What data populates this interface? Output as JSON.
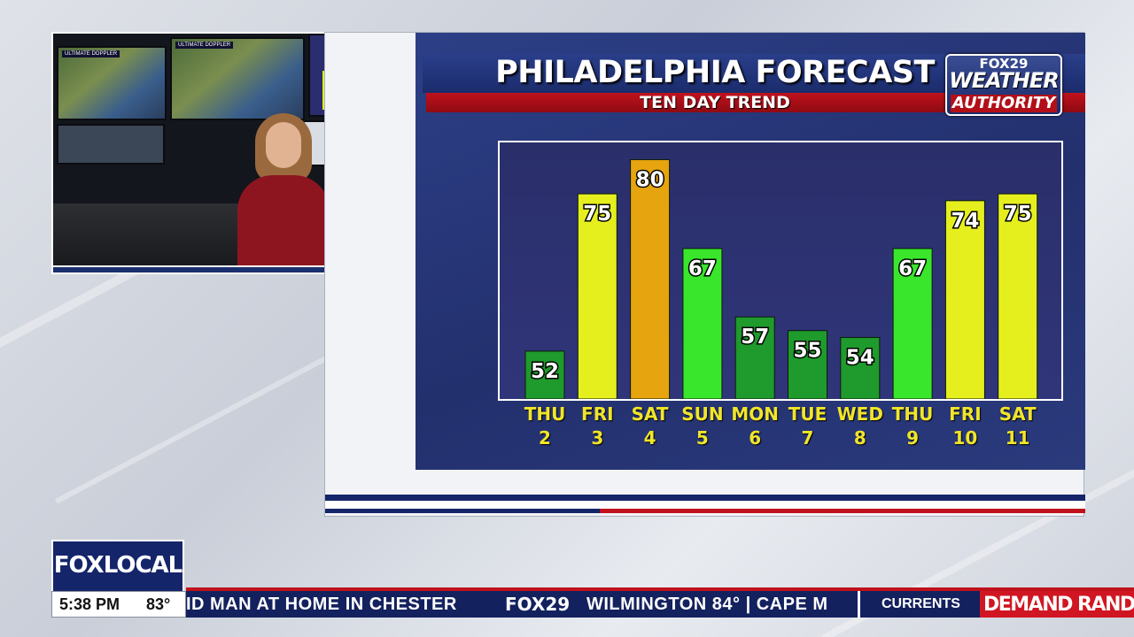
{
  "forecast": {
    "title": "PHILADELPHIA FORECAST",
    "subtitle": "TEN DAY TREND"
  },
  "logo": {
    "line1": "FOX29",
    "line2": "WEATHER",
    "line3": "AUTHORITY"
  },
  "chart_data": {
    "type": "bar",
    "title": "PHILADELPHIA FORECAST",
    "subtitle": "TEN DAY TREND",
    "days": [
      "THU",
      "FRI",
      "SAT",
      "SUN",
      "MON",
      "TUE",
      "WED",
      "THU",
      "FRI",
      "SAT"
    ],
    "dates": [
      "2",
      "3",
      "4",
      "5",
      "6",
      "7",
      "8",
      "9",
      "10",
      "11"
    ],
    "categories": [
      "THU 2",
      "FRI 3",
      "SAT 4",
      "SUN 5",
      "MON 6",
      "TUE 7",
      "WED 8",
      "THU 9",
      "FRI 10",
      "SAT 11"
    ],
    "values": [
      52,
      75,
      80,
      67,
      57,
      55,
      54,
      67,
      74,
      75
    ],
    "bar_colors": [
      "#1f9a2c",
      "#e6ef1e",
      "#e6a40e",
      "#39e62b",
      "#1f9a2c",
      "#1f9a2c",
      "#1f9a2c",
      "#39e62b",
      "#e6ef1e",
      "#e6ef1e"
    ],
    "grid": false,
    "legend": "none"
  },
  "inset": {
    "monitor1_label": "ULTIMATE DOPPLER",
    "monitor2_label": "ULTIMATE DOPPLER"
  },
  "bottom": {
    "brand": "FOXLOCAL",
    "time": "5:38 PM",
    "temperature": "83°",
    "ticker_headline": "ID MAN AT HOME IN CHESTER",
    "ticker_station": "FOX29",
    "ticker_weather": "WILMINGTON 84° | CAPE M",
    "section": "CURRENTS",
    "sponsor": "DEMAND RAND"
  },
  "colors": {
    "navy": "#15256a",
    "red": "#c0121c",
    "label_yellow": "#f0e52a"
  }
}
